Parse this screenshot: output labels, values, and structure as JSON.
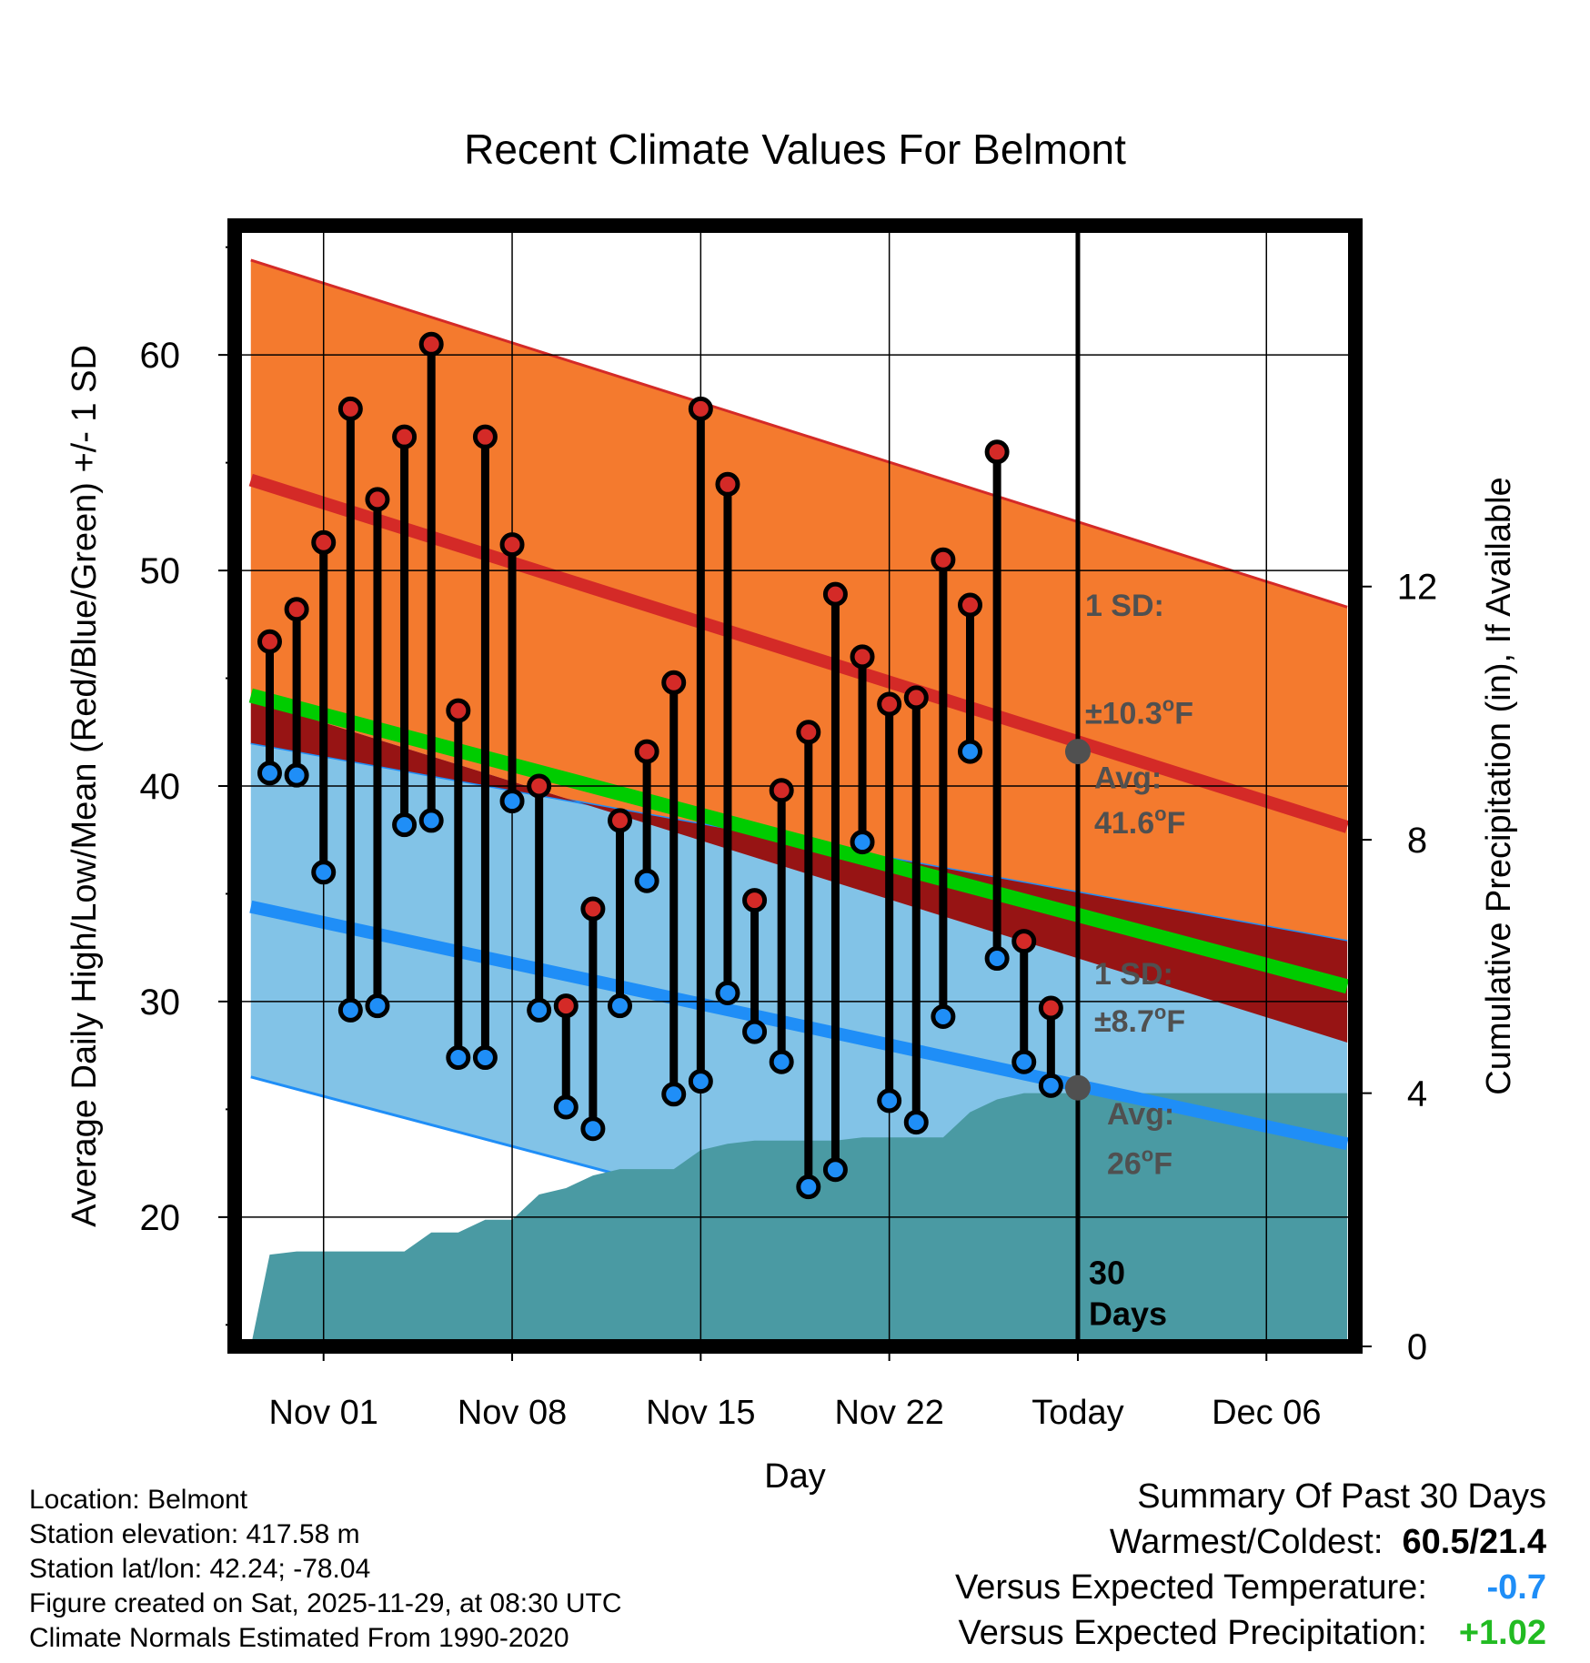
{
  "chart_data": {
    "type": "line",
    "title": "Recent Climate Values For Belmont",
    "xlabel": "Day",
    "ylabel": "Average Daily High/Low/Mean (Red/Blue/Green) +/- 1 SD",
    "y2label": "Cumulative Precipitation (in), If Available",
    "xlim": [
      -3.3,
      38.3
    ],
    "ylim": [
      14,
      66
    ],
    "y2lim": [
      0,
      17.7
    ],
    "x_ticks": [
      {
        "x": 0,
        "label": "Nov 01"
      },
      {
        "x": 7,
        "label": "Nov 08"
      },
      {
        "x": 14,
        "label": "Nov 15"
      },
      {
        "x": 21,
        "label": "Nov 22"
      },
      {
        "x": 28,
        "label": "Today"
      },
      {
        "x": 35,
        "label": "Dec 06"
      }
    ],
    "y_ticks": [
      20,
      30,
      40,
      50,
      60
    ],
    "y_minor_ticks": [
      15,
      25,
      35,
      45,
      55,
      65
    ],
    "y2_ticks": [
      0,
      4,
      8,
      12
    ],
    "normals_x": [
      -2.7,
      38
    ],
    "normal_high": [
      54.2,
      38.1
    ],
    "normal_high_plus_sd": [
      64.4,
      48.3
    ],
    "normal_high_minus_sd": [
      44.0,
      28.1
    ],
    "normal_low": [
      34.4,
      23.4
    ],
    "normal_low_plus_sd": [
      42.0,
      32.8
    ],
    "normal_low_minus_sd": [
      26.5,
      13.0
    ],
    "normal_mean": [
      44.2,
      30.7
    ],
    "daily_x": [
      -2,
      -1,
      0,
      1,
      2,
      3,
      4,
      5,
      6,
      7,
      8,
      9,
      10,
      11,
      12,
      13,
      14,
      15,
      16,
      17,
      18,
      19,
      20,
      21,
      22,
      23,
      24,
      25,
      26,
      27
    ],
    "daily_high": [
      46.7,
      48.2,
      51.3,
      57.5,
      53.3,
      56.2,
      60.5,
      43.5,
      56.2,
      51.2,
      40.0,
      29.8,
      34.3,
      38.4,
      41.6,
      44.8,
      57.5,
      54.0,
      34.7,
      39.8,
      42.5,
      48.9,
      46.0,
      43.8,
      44.1,
      50.5,
      48.4,
      55.5,
      32.8,
      29.7
    ],
    "daily_low": [
      40.6,
      40.5,
      36.0,
      29.6,
      29.8,
      38.2,
      38.4,
      27.4,
      27.4,
      39.3,
      29.6,
      25.1,
      24.1,
      29.8,
      35.6,
      25.7,
      26.3,
      30.4,
      28.6,
      27.2,
      21.4,
      22.2,
      37.4,
      25.4,
      24.4,
      29.3,
      41.6,
      32.0,
      27.2,
      26.1
    ],
    "precip_x": [
      -2.7,
      -2.0,
      -1.0,
      0,
      1,
      2,
      3,
      4,
      5,
      6,
      7,
      8,
      9,
      10,
      11,
      12,
      13,
      14,
      15,
      16,
      17,
      18,
      19,
      20,
      21,
      22,
      23,
      24,
      25,
      26,
      27,
      28,
      38
    ],
    "precip_cum": [
      0.0,
      1.45,
      1.5,
      1.5,
      1.5,
      1.5,
      1.5,
      1.8,
      1.8,
      2.0,
      2.0,
      2.4,
      2.5,
      2.7,
      2.8,
      2.8,
      2.8,
      3.1,
      3.2,
      3.25,
      3.25,
      3.25,
      3.25,
      3.3,
      3.3,
      3.3,
      3.3,
      3.7,
      3.9,
      4.0,
      4.0,
      4.0,
      4.0
    ],
    "today_x": 28,
    "high_marker": 41.6,
    "low_marker": 26.0,
    "annotations": {
      "high_sd": "1 SD:",
      "high_sd_value": "±10.3",
      "high_avg": "Avg:",
      "high_avg_value": "41.6",
      "low_sd": "1 SD:",
      "low_sd_value": "±8.7",
      "low_avg": "Avg:",
      "low_avg_value": "26",
      "degree_unit": "F",
      "days_count": "30",
      "days_label": "Days"
    },
    "colors": {
      "high_band": "#f47a2e",
      "high_line": "#d42a27",
      "low_band": "#82c3e7",
      "low_line": "#1f8ef7",
      "mean_line": "#00cc00",
      "overlap_band": "#971414",
      "precip": "#4a9aa3",
      "high_dot": "#d42a27",
      "low_dot": "#1f8ef7",
      "marker": "#505050",
      "annotation_text": "#505050"
    }
  },
  "info": {
    "location": "Location: Belmont",
    "elevation": "Station elevation: 417.58 m",
    "latlon": "Station lat/lon: 42.24; -78.04",
    "created": "Figure created on Sat, 2025-11-29, at 08:30 UTC",
    "normals": "Climate Normals Estimated From 1990-2020"
  },
  "summary": {
    "title": "Summary Of Past 30 Days",
    "warm_cold_label": "Warmest/Coldest:",
    "warm_cold_value": "60.5/21.4",
    "temp_label": "Versus Expected Temperature:",
    "temp_value": "-0.7",
    "temp_color": "#1f8ef7",
    "precip_label": "Versus Expected Precipitation:",
    "precip_value": "+1.02",
    "precip_color": "#22bb22"
  }
}
